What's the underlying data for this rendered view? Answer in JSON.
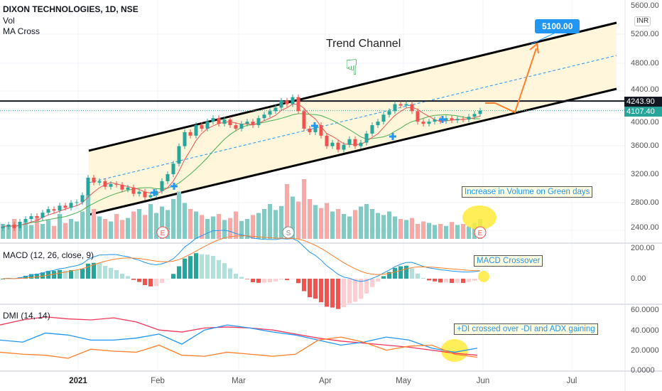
{
  "header": {
    "title": "DIXON TECHNOLOGIES, 1D, NSE",
    "indicator1": "Vol",
    "indicator2": "MA Cross"
  },
  "currency": "INR",
  "colors": {
    "up": "#26a69a",
    "down": "#ef5350",
    "ma_fast": "#ef5350",
    "ma_slow": "#4caf50",
    "macd": "#2196f3",
    "signal": "#ff7f2a",
    "di_plus": "#2196f3",
    "di_minus": "#ff7f2a",
    "adx": "#f23659",
    "channel_fill": "#fff6dc",
    "highlight": "#ffeb3b"
  },
  "annotations": {
    "trend_channel": "Trend Channel",
    "target": "5100.00",
    "volume_note": "Increase in Volume on Green days",
    "macd_note": "MACD Crossover",
    "dmi_note": "+DI crossed over -DI and ADX gaining",
    "events": [
      "E",
      "S",
      "E"
    ]
  },
  "price_tags": {
    "horizontal_line": "4243.90",
    "last_price": "4107.40"
  },
  "panes": {
    "macd_label": "MACD (12, 26, close, 9)",
    "dmi_label": "DMI (14, 14)"
  },
  "chart_data": {
    "type": "candlestick",
    "title": "DIXON TECHNOLOGIES, 1D, NSE",
    "x_ticks": [
      "2021",
      "Feb",
      "Mar",
      "Apr",
      "May",
      "Jun",
      "Jul"
    ],
    "price_axis": {
      "ticks": [
        "5600.00",
        "5200.00",
        "4800.00",
        "4400.00",
        "4000.00",
        "3600.00",
        "3200.00",
        "2800.00",
        "2400.00"
      ],
      "range": [
        2300,
        5600
      ]
    },
    "macd_axis": {
      "ticks": [
        "200.00",
        "0.00"
      ]
    },
    "dmi_axis": {
      "ticks": [
        "60.0000",
        "40.0000",
        "20.0000",
        "0.0000"
      ],
      "range": [
        0,
        60
      ]
    },
    "close": [
      2450,
      2480,
      2430,
      2520,
      2560,
      2600,
      2580,
      2650,
      2700,
      2680,
      2750,
      2720,
      2790,
      2800,
      2900,
      3150,
      3080,
      3100,
      3020,
      3060,
      3050,
      2980,
      3010,
      2920,
      2950,
      2870,
      2900,
      2960,
      3100,
      3200,
      3350,
      3600,
      3800,
      3750,
      3900,
      3850,
      3950,
      4000,
      3920,
      3980,
      3900,
      3850,
      3920,
      3950,
      3900,
      4000,
      4050,
      4100,
      4150,
      4250,
      4200,
      4300,
      4100,
      3850,
      3800,
      3900,
      3750,
      3600,
      3650,
      3550,
      3620,
      3700,
      3600,
      3650,
      3780,
      3900,
      3950,
      4050,
      4100,
      4200,
      4180,
      4200,
      4100,
      3950,
      3920,
      3950,
      3980,
      3960,
      4000,
      3970,
      3990,
      3980,
      4020,
      4060,
      4107.4
    ],
    "volume_relative": [
      30,
      25,
      40,
      22,
      35,
      28,
      45,
      30,
      38,
      26,
      50,
      32,
      40,
      35,
      55,
      90,
      60,
      45,
      40,
      35,
      50,
      38,
      42,
      55,
      60,
      48,
      70,
      52,
      65,
      58,
      80,
      95,
      72,
      60,
      55,
      48,
      40,
      45,
      50,
      38,
      42,
      55,
      36,
      40,
      48,
      52,
      60,
      70,
      58,
      66,
      110,
      85,
      75,
      120,
      80,
      68,
      62,
      72,
      55,
      60,
      50,
      45,
      58,
      65,
      70,
      60,
      52,
      48,
      55,
      45,
      40,
      38,
      42,
      30,
      35,
      32,
      28,
      30,
      26,
      34,
      28,
      30,
      25,
      32,
      40
    ],
    "dmi": {
      "adx": [
        45,
        50,
        53,
        51,
        50,
        52,
        48,
        40,
        38,
        42,
        43,
        42,
        40,
        36,
        32,
        29,
        27,
        25,
        23,
        20,
        17,
        15
      ],
      "di_plus": [
        30,
        28,
        37,
        35,
        30,
        30,
        32,
        36,
        26,
        40,
        45,
        42,
        38,
        35,
        30,
        25,
        28,
        33,
        30,
        22,
        18,
        22
      ],
      "di_minus": [
        18,
        16,
        15,
        12,
        21,
        19,
        18,
        25,
        15,
        14,
        18,
        16,
        14,
        16,
        30,
        33,
        28,
        20,
        24,
        25,
        16,
        13
      ]
    },
    "horizontal_level": 4243.9,
    "target_price": 5100
  }
}
